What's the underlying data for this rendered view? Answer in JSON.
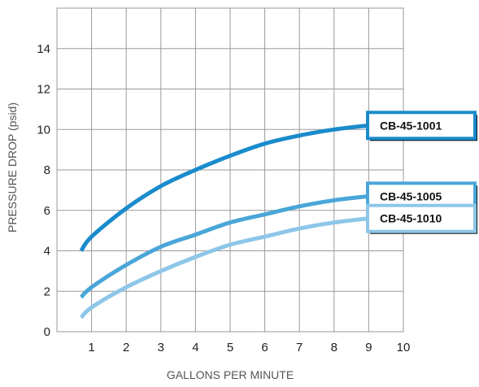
{
  "chart_data": {
    "type": "line",
    "xlabel": "GALLONS PER MINUTE",
    "ylabel": "PRESSURE DROP (psid)",
    "xlim": [
      0,
      10
    ],
    "ylim": [
      0,
      16
    ],
    "x_ticks": [
      "1",
      "2",
      "3",
      "4",
      "5",
      "6",
      "7",
      "8",
      "9",
      "10"
    ],
    "y_ticks": [
      "0",
      "2",
      "4",
      "6",
      "8",
      "10",
      "12",
      "14"
    ],
    "grid": true,
    "series": [
      {
        "name": "CB-45-1001",
        "color": "#1a8bcc",
        "x": [
          0.7,
          1,
          2,
          3,
          4,
          5,
          6,
          7,
          8,
          9
        ],
        "y": [
          4.0,
          4.7,
          6.1,
          7.2,
          8.0,
          8.7,
          9.3,
          9.7,
          10.0,
          10.2
        ]
      },
      {
        "name": "CB-45-1005",
        "color": "#4aa6d8",
        "x": [
          0.7,
          1,
          2,
          3,
          4,
          5,
          6,
          7,
          8,
          9
        ],
        "y": [
          1.7,
          2.2,
          3.3,
          4.2,
          4.8,
          5.4,
          5.8,
          6.2,
          6.5,
          6.7
        ]
      },
      {
        "name": "CB-45-1010",
        "color": "#8dc6e8",
        "x": [
          0.7,
          1,
          2,
          3,
          4,
          5,
          6,
          7,
          8,
          9
        ],
        "y": [
          0.7,
          1.2,
          2.2,
          3.0,
          3.7,
          4.3,
          4.7,
          5.1,
          5.4,
          5.6
        ]
      }
    ]
  }
}
